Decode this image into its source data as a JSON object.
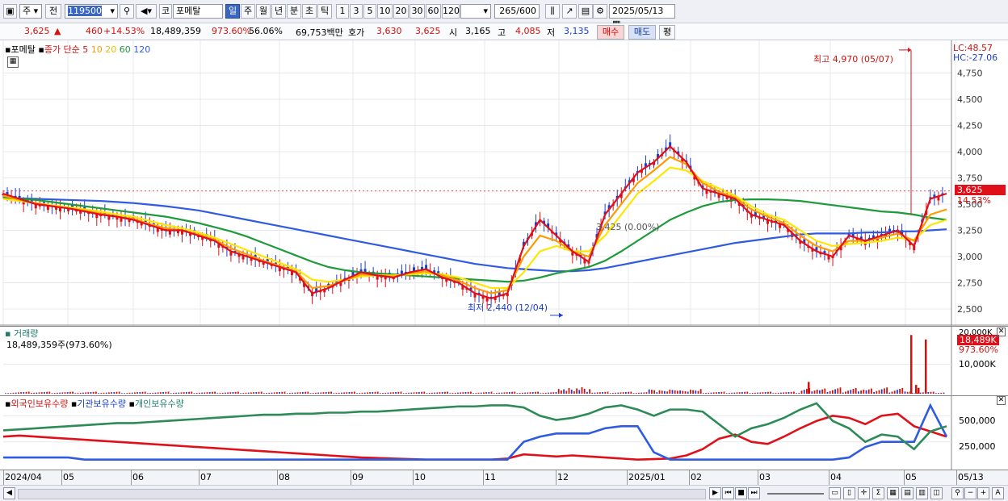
{
  "toolbar": {
    "market": "주",
    "prev": "전",
    "code": "119500",
    "badge": "코",
    "name": "포메탈",
    "periods": [
      "일",
      "주",
      "월",
      "년",
      "분",
      "초",
      "틱"
    ],
    "minutes": [
      "1",
      "3",
      "5",
      "10",
      "20",
      "30",
      "60",
      "120"
    ],
    "count": "265",
    "count_total": "/600",
    "date": "2025/05/13"
  },
  "quote": {
    "price": "3,625",
    "change": "460",
    "change_pct": "+14.53%",
    "volume": "18,489,359",
    "vol_ratio": "973.60%",
    "turnover": "56.06%",
    "amount": "69,753백만",
    "hoga_label": "호가",
    "ask": "3,630",
    "bid": "3,625",
    "open_label": "시",
    "open": "3,165",
    "high_label": "고",
    "high": "4,085",
    "low_label": "저",
    "low": "3,135",
    "buy_btn": "매수",
    "sell_btn": "매도",
    "eval_btn": "평"
  },
  "price_panel": {
    "title": "포메탈",
    "legend_prefix": "종가 단순",
    "ma_labels": [
      "5",
      "10",
      "20",
      "60",
      "120"
    ],
    "lc": "LC:48.57",
    "hc": "HC:-27.06",
    "high_annot": "최고 4,970 (05/07)",
    "low_annot": "최저 2,440 (12/04)",
    "mid_annot": "3,425 (0.00%)",
    "last_price": "3,625",
    "last_pct": "14.53%",
    "y_ticks": [
      "4,750",
      "4,500",
      "4,250",
      "4,000",
      "3,750",
      "3,500",
      "3,250",
      "3,000",
      "2,750",
      "2,500"
    ]
  },
  "volume_panel": {
    "title": "거래량",
    "value": "18,489,359주(973.60%)",
    "y_ticks": [
      "20,000K",
      "10,000K"
    ],
    "last": "18,489K",
    "last_pct": "973.60%"
  },
  "holding_panel": {
    "legend": [
      "외국인보유수량",
      "기관보유수량",
      "개인보유수량"
    ],
    "y_ticks": [
      "500,000",
      "250,000"
    ]
  },
  "x_labels": [
    "2024/04",
    "05",
    "06",
    "07",
    "08",
    "09",
    "10",
    "11",
    "12",
    "2025/01",
    "02",
    "03",
    "04",
    "05",
    "05/13"
  ],
  "colors": {
    "ma5": "#e0101a",
    "ma10": "#ff9a00",
    "ma20": "#ffe600",
    "ma60": "#1f9a3a",
    "ma120": "#2f5be0",
    "up": "#e0101a",
    "down": "#1a3fcf"
  },
  "chart_data": {
    "type": "candlestick",
    "ma_periods": [
      5,
      10,
      20,
      60,
      120
    ],
    "price_range": [
      2400,
      5000
    ],
    "highlights": {
      "max": {
        "value": 4970,
        "date": "05/07"
      },
      "min": {
        "value": 2440,
        "date": "12/04"
      }
    },
    "ma_series": [
      {
        "name": "5",
        "color": "#e0101a",
        "values": [
          3600,
          3550,
          3500,
          3480,
          3460,
          3430,
          3400,
          3380,
          3350,
          3300,
          3250,
          3250,
          3200,
          3150,
          3050,
          3000,
          2950,
          2900,
          2850,
          2650,
          2700,
          2780,
          2850,
          2820,
          2800,
          2850,
          2880,
          2800,
          2750,
          2650,
          2600,
          2650,
          3100,
          3350,
          3200,
          3050,
          2950,
          3400,
          3600,
          3800,
          3900,
          4050,
          3900,
          3650,
          3600,
          3550,
          3400,
          3350,
          3300,
          3150,
          3050,
          3000,
          3200,
          3150,
          3200,
          3250,
          3100,
          3550,
          3600
        ]
      },
      {
        "name": "10",
        "color": "#ff9a00",
        "values": [
          3580,
          3540,
          3510,
          3480,
          3460,
          3440,
          3410,
          3380,
          3360,
          3310,
          3270,
          3250,
          3210,
          3160,
          3080,
          3020,
          2960,
          2910,
          2860,
          2700,
          2720,
          2770,
          2830,
          2820,
          2810,
          2840,
          2860,
          2820,
          2770,
          2700,
          2650,
          2680,
          3000,
          3200,
          3150,
          3050,
          3000,
          3300,
          3500,
          3700,
          3820,
          3950,
          3880,
          3700,
          3620,
          3560,
          3450,
          3380,
          3320,
          3200,
          3100,
          3050,
          3150,
          3150,
          3180,
          3220,
          3150,
          3400,
          3450
        ]
      },
      {
        "name": "20",
        "color": "#ffe600",
        "values": [
          3550,
          3530,
          3510,
          3490,
          3470,
          3450,
          3430,
          3400,
          3380,
          3340,
          3300,
          3270,
          3230,
          3180,
          3120,
          3060,
          3000,
          2940,
          2880,
          2780,
          2760,
          2780,
          2810,
          2820,
          2820,
          2830,
          2840,
          2830,
          2800,
          2750,
          2700,
          2700,
          2850,
          3050,
          3100,
          3050,
          3050,
          3200,
          3400,
          3600,
          3720,
          3850,
          3820,
          3720,
          3650,
          3580,
          3480,
          3400,
          3350,
          3250,
          3150,
          3100,
          3120,
          3130,
          3150,
          3180,
          3160,
          3300,
          3350
        ]
      },
      {
        "name": "60",
        "color": "#1f9a3a",
        "values": [
          3560,
          3550,
          3540,
          3520,
          3500,
          3480,
          3460,
          3440,
          3420,
          3400,
          3380,
          3350,
          3320,
          3280,
          3240,
          3190,
          3130,
          3070,
          3010,
          2950,
          2900,
          2870,
          2850,
          2840,
          2830,
          2820,
          2810,
          2800,
          2790,
          2780,
          2770,
          2760,
          2770,
          2800,
          2840,
          2870,
          2900,
          2960,
          3050,
          3150,
          3250,
          3350,
          3420,
          3480,
          3520,
          3540,
          3545,
          3545,
          3540,
          3530,
          3510,
          3490,
          3470,
          3450,
          3430,
          3420,
          3400,
          3370,
          3350
        ]
      },
      {
        "name": "120",
        "color": "#2f5be0",
        "values": [
          3560,
          3555,
          3550,
          3545,
          3540,
          3535,
          3530,
          3520,
          3510,
          3495,
          3480,
          3460,
          3440,
          3410,
          3380,
          3350,
          3320,
          3290,
          3260,
          3230,
          3200,
          3170,
          3140,
          3110,
          3080,
          3050,
          3020,
          2990,
          2960,
          2930,
          2910,
          2890,
          2880,
          2870,
          2860,
          2860,
          2870,
          2890,
          2920,
          2950,
          2980,
          3010,
          3040,
          3070,
          3100,
          3130,
          3150,
          3170,
          3190,
          3210,
          3220,
          3220,
          3220,
          3230,
          3230,
          3240,
          3240,
          3250,
          3260
        ]
      }
    ],
    "volume_highlights": [
      {
        "label": "2025/05/07",
        "value": 20000
      },
      {
        "label": "2025/05/09",
        "value": 8000
      },
      {
        "label": "2025/05/13",
        "value": 18489
      }
    ],
    "holding_series": [
      {
        "name": "외국인보유수량",
        "color": "#e0101a",
        "values": [
          300000,
          310000,
          300000,
          290000,
          280000,
          270000,
          260000,
          250000,
          240000,
          230000,
          220000,
          210000,
          200000,
          190000,
          180000,
          170000,
          160000,
          150000,
          140000,
          130000,
          120000,
          110000,
          100000,
          95000,
          90000,
          85000,
          80000,
          80000,
          80000,
          80000,
          80000,
          90000,
          130000,
          120000,
          110000,
          120000,
          110000,
          100000,
          90000,
          80000,
          85000,
          90000,
          120000,
          180000,
          280000,
          320000,
          250000,
          230000,
          300000,
          380000,
          450000,
          500000,
          480000,
          420000,
          500000,
          520000,
          400000,
          350000,
          300000
        ]
      },
      {
        "name": "기관보유수량",
        "color": "#2f5be0",
        "values": [
          100000,
          100000,
          100000,
          100000,
          100000,
          80000,
          80000,
          80000,
          80000,
          80000,
          80000,
          80000,
          80000,
          80000,
          80000,
          80000,
          80000,
          80000,
          80000,
          80000,
          80000,
          80000,
          80000,
          80000,
          80000,
          80000,
          80000,
          80000,
          80000,
          80000,
          80000,
          80000,
          250000,
          300000,
          330000,
          330000,
          330000,
          380000,
          400000,
          400000,
          150000,
          80000,
          80000,
          80000,
          80000,
          80000,
          80000,
          80000,
          80000,
          80000,
          80000,
          80000,
          100000,
          200000,
          250000,
          250000,
          250000,
          600000,
          300000
        ]
      },
      {
        "name": "개인보유수량",
        "color": "#2e8b57",
        "values": [
          360000,
          370000,
          380000,
          390000,
          400000,
          410000,
          420000,
          430000,
          430000,
          440000,
          450000,
          460000,
          470000,
          480000,
          490000,
          500000,
          510000,
          510000,
          520000,
          520000,
          530000,
          530000,
          540000,
          540000,
          550000,
          560000,
          570000,
          580000,
          590000,
          590000,
          600000,
          600000,
          580000,
          500000,
          460000,
          480000,
          520000,
          580000,
          600000,
          560000,
          500000,
          560000,
          560000,
          540000,
          420000,
          300000,
          380000,
          420000,
          480000,
          560000,
          620000,
          450000,
          380000,
          250000,
          320000,
          300000,
          180000,
          350000,
          400000
        ]
      }
    ]
  }
}
